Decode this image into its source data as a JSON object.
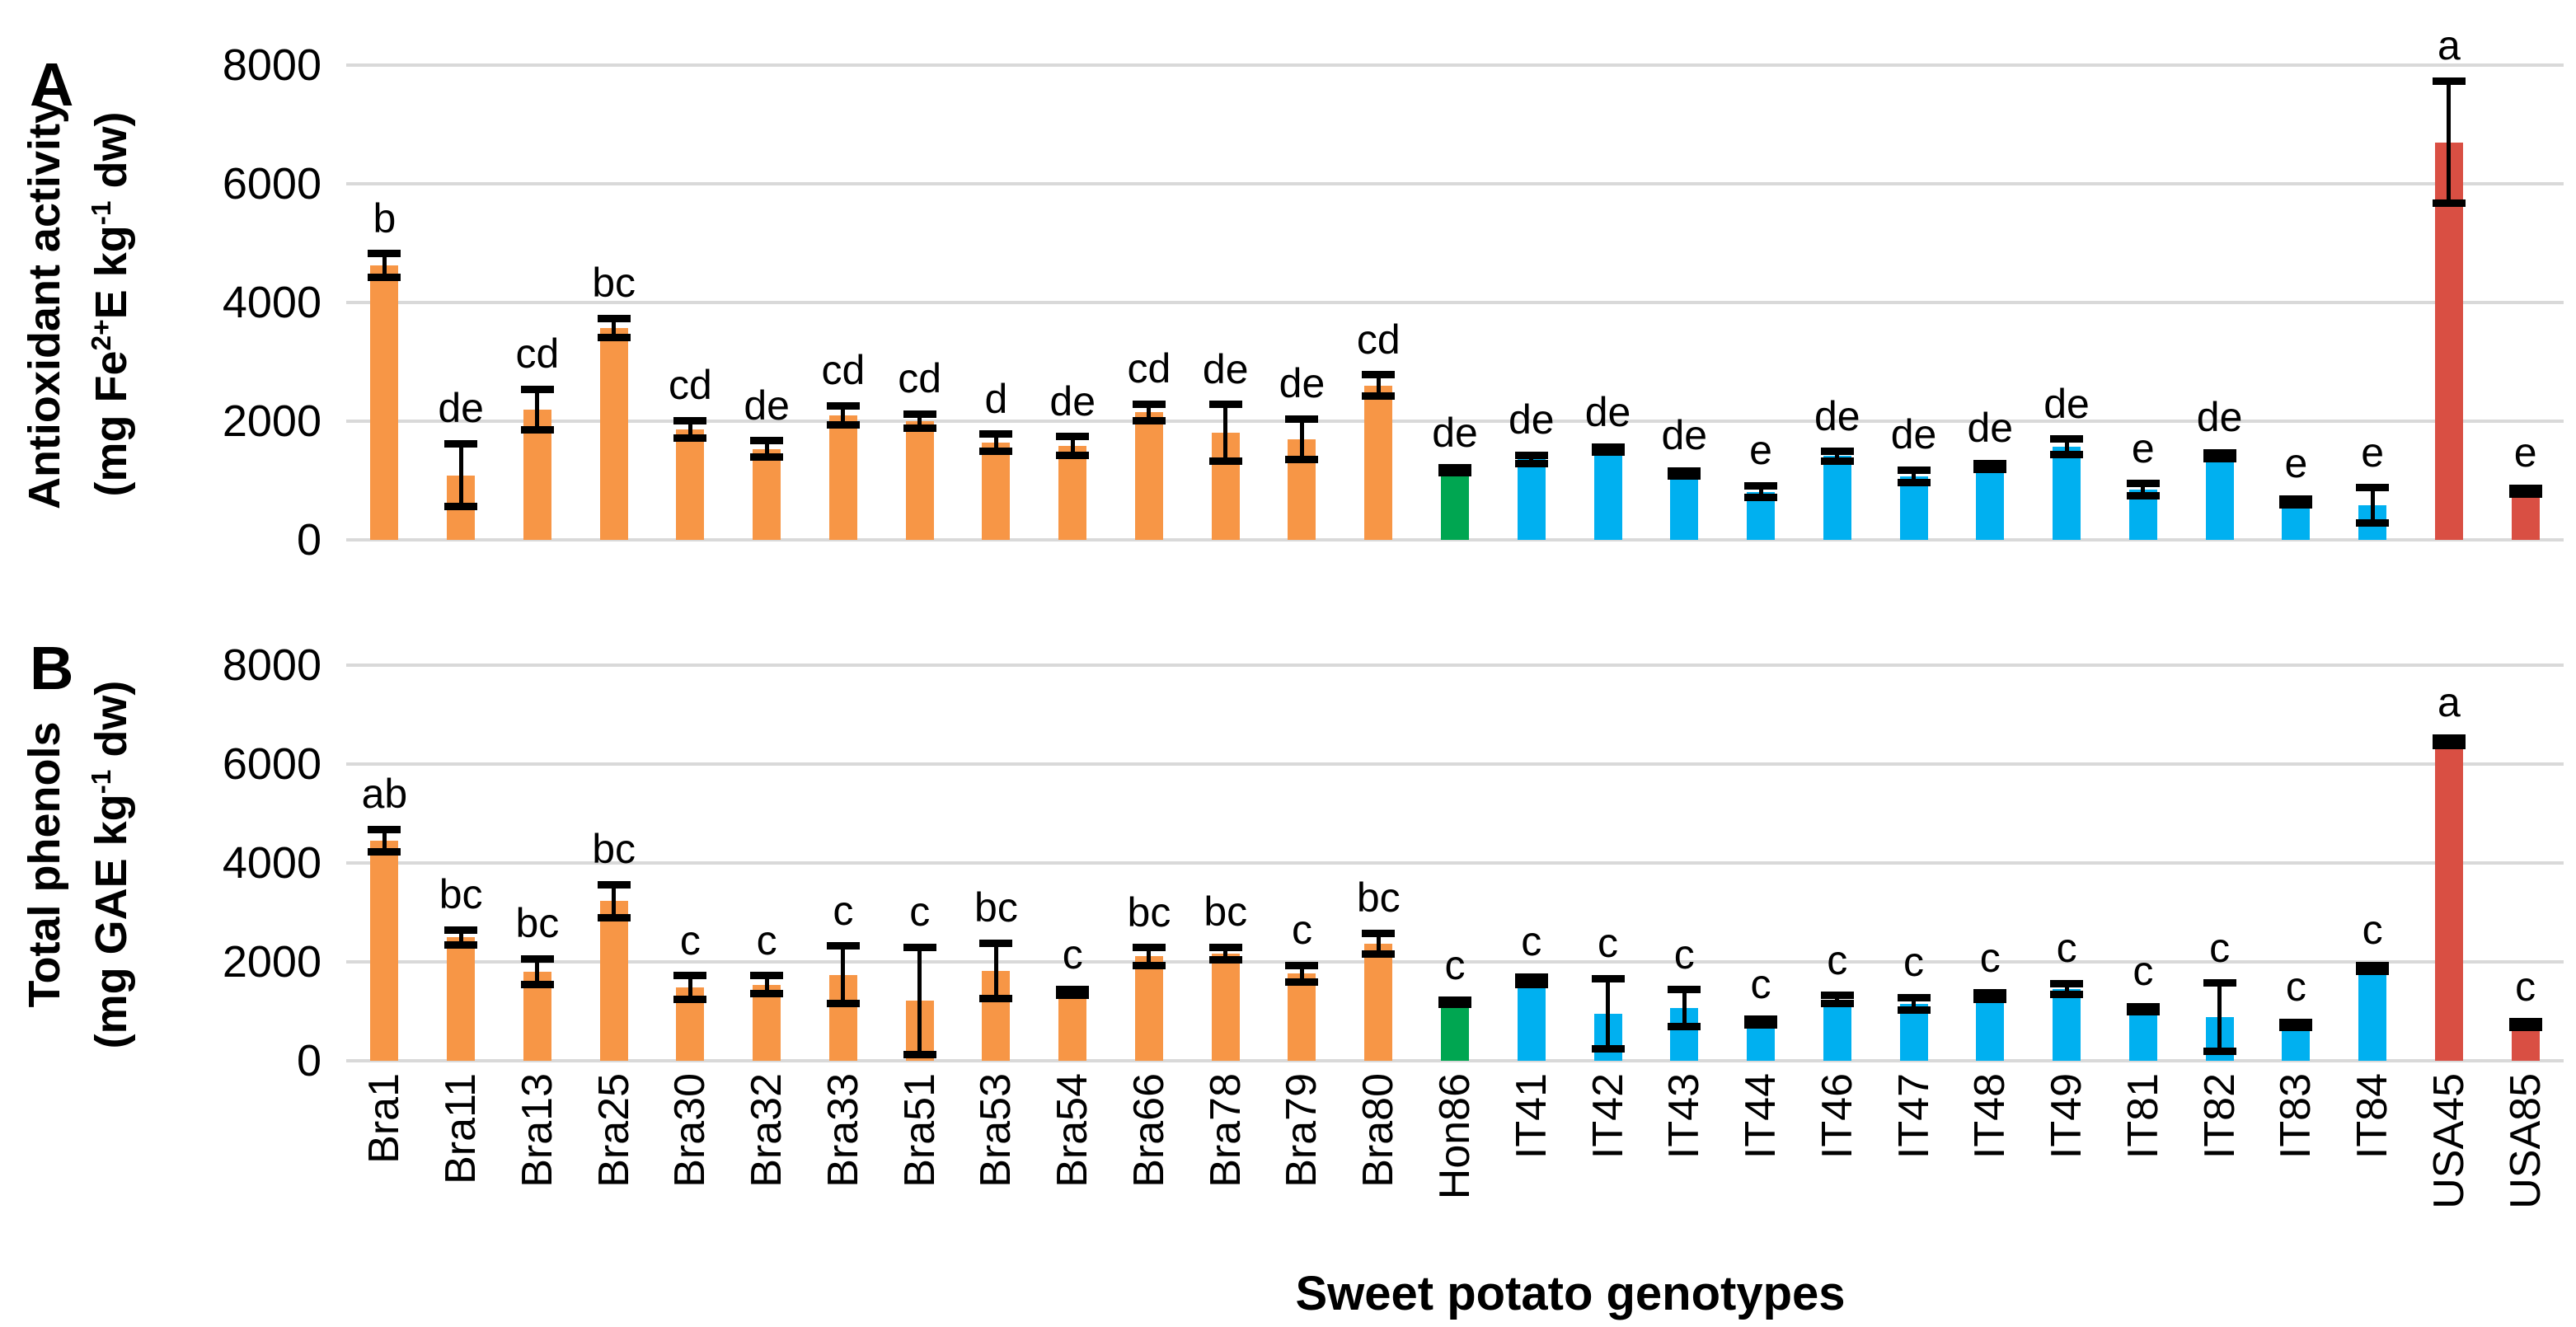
{
  "figure": {
    "panel_a_letter": "A",
    "panel_b_letter": "B",
    "xlabel": "Sweet potato genotypes"
  },
  "panels": [
    {
      "letter": "A",
      "title": "Antioxidant activity",
      "unit": {
        "p1": "(mg Fe",
        "s1": "2+",
        "p2": "E kg",
        "s2": "-1",
        "p3": " dw)"
      }
    },
    {
      "letter": "B",
      "title": "Total phenols",
      "unit": {
        "p1": "(mg GAE kg",
        "s1": "-1",
        "p2": " dw)",
        "s2": "",
        "p3": ""
      }
    }
  ],
  "colors": {
    "bra": "#F79646",
    "hon": "#00A651",
    "it": "#00B0F0",
    "usa": "#D94F43",
    "gridline": "#D9D9D9",
    "error_bar": "#000000",
    "text": "#000000"
  },
  "chart_data": [
    {
      "type": "bar",
      "panel": "A",
      "ylabel": "Antioxidant activity (mg Fe2+E kg-1 dw)",
      "xlabel": "Sweet potato genotypes",
      "ylim": [
        0,
        8000
      ],
      "yticks": [
        0,
        2000,
        4000,
        6000,
        8000
      ],
      "grid": true,
      "legend": "none",
      "categories": [
        "Bra1",
        "Bra11",
        "Bra13",
        "Bra25",
        "Bra30",
        "Bra32",
        "Bra33",
        "Bra51",
        "Bra53",
        "Bra54",
        "Bra66",
        "Bra78",
        "Bra79",
        "Bra80",
        "Hon86",
        "IT41",
        "IT42",
        "IT43",
        "IT44",
        "IT46",
        "IT47",
        "IT48",
        "IT49",
        "IT81",
        "IT82",
        "IT83",
        "IT84",
        "USA45",
        "USA85"
      ],
      "groups": [
        "bra",
        "bra",
        "bra",
        "bra",
        "bra",
        "bra",
        "bra",
        "bra",
        "bra",
        "bra",
        "bra",
        "bra",
        "bra",
        "bra",
        "hon",
        "it",
        "it",
        "it",
        "it",
        "it",
        "it",
        "it",
        "it",
        "it",
        "it",
        "it",
        "it",
        "usa",
        "usa"
      ],
      "values": [
        4620,
        1090,
        2200,
        3570,
        1860,
        1530,
        2100,
        2000,
        1640,
        1580,
        2150,
        1800,
        1700,
        2600,
        1170,
        1360,
        1520,
        1120,
        810,
        1410,
        1070,
        1240,
        1570,
        850,
        1420,
        640,
        580,
        6700,
        820
      ],
      "errors": [
        200,
        530,
        340,
        160,
        150,
        140,
        160,
        120,
        140,
        160,
        140,
        480,
        340,
        180,
        40,
        70,
        40,
        40,
        100,
        80,
        110,
        50,
        130,
        100,
        50,
        50,
        300,
        1030,
        50
      ],
      "letters": [
        "b",
        "de",
        "cd",
        "bc",
        "cd",
        "de",
        "cd",
        "cd",
        "d",
        "de",
        "cd",
        "de",
        "de",
        "cd",
        "de",
        "de",
        "de",
        "de",
        "e",
        "de",
        "de",
        "de",
        "de",
        "e",
        "de",
        "e",
        "e",
        "a",
        "e"
      ]
    },
    {
      "type": "bar",
      "panel": "B",
      "ylabel": "Total phenols (mg GAE kg-1 dw)",
      "xlabel": "Sweet potato genotypes",
      "ylim": [
        0,
        8000
      ],
      "yticks": [
        0,
        2000,
        4000,
        6000,
        8000
      ],
      "grid": true,
      "legend": "none",
      "categories": [
        "Bra1",
        "Bra11",
        "Bra13",
        "Bra25",
        "Bra30",
        "Bra32",
        "Bra33",
        "Bra51",
        "Bra53",
        "Bra54",
        "Bra66",
        "Bra78",
        "Bra79",
        "Bra80",
        "Hon86",
        "IT41",
        "IT42",
        "IT43",
        "IT44",
        "IT46",
        "IT47",
        "IT48",
        "IT49",
        "IT81",
        "IT82",
        "IT83",
        "IT84",
        "USA45",
        "USA85"
      ],
      "groups": [
        "bra",
        "bra",
        "bra",
        "bra",
        "bra",
        "bra",
        "bra",
        "bra",
        "bra",
        "bra",
        "bra",
        "bra",
        "bra",
        "bra",
        "hon",
        "it",
        "it",
        "it",
        "it",
        "it",
        "it",
        "it",
        "it",
        "it",
        "it",
        "it",
        "it",
        "usa",
        "usa"
      ],
      "values": [
        4450,
        2500,
        1800,
        3230,
        1480,
        1540,
        1740,
        1210,
        1820,
        1380,
        2110,
        2170,
        1760,
        2370,
        1180,
        1620,
        950,
        1070,
        780,
        1240,
        1150,
        1310,
        1450,
        1050,
        880,
        730,
        1870,
        6450,
        730
      ],
      "errors": [
        230,
        150,
        260,
        330,
        240,
        180,
        580,
        1090,
        560,
        60,
        180,
        130,
        170,
        210,
        40,
        80,
        710,
        370,
        60,
        80,
        130,
        60,
        110,
        50,
        690,
        50,
        60,
        80,
        60
      ],
      "letters": [
        "ab",
        "bc",
        "bc",
        "bc",
        "c",
        "c",
        "c",
        "c",
        "bc",
        "c",
        "bc",
        "bc",
        "c",
        "bc",
        "c",
        "c",
        "c",
        "c",
        "c",
        "c",
        "c",
        "c",
        "c",
        "c",
        "c",
        "c",
        "c",
        "a",
        "c"
      ]
    }
  ]
}
